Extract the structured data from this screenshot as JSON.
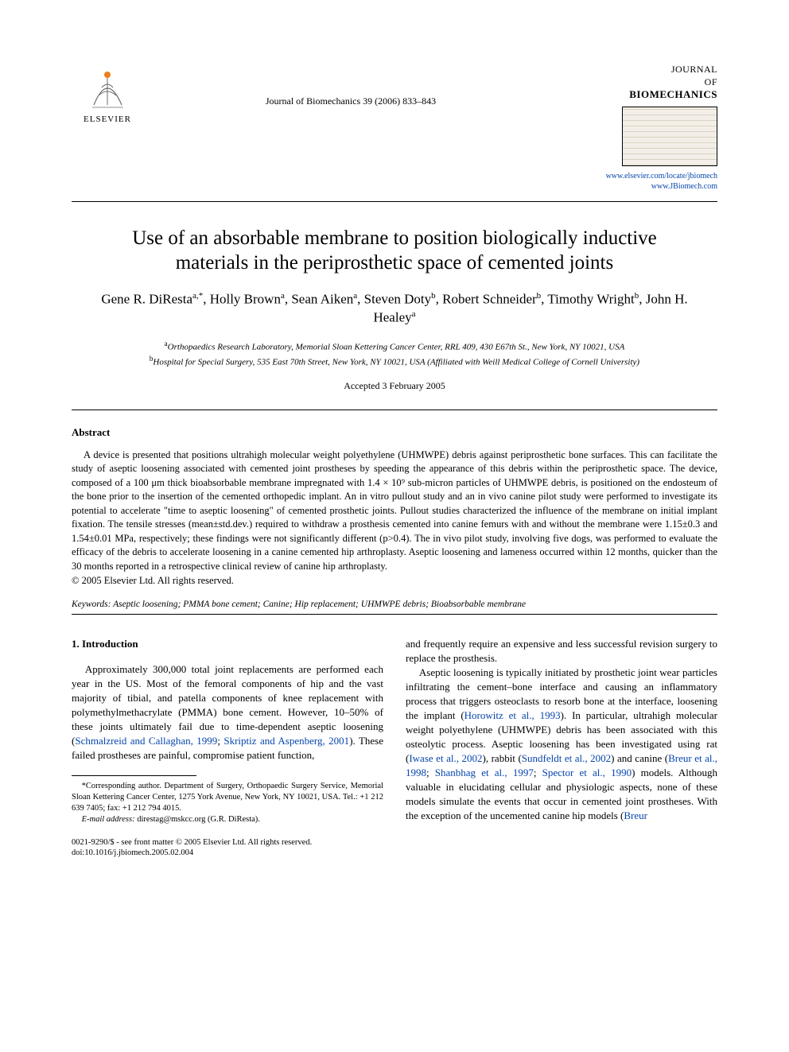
{
  "header": {
    "publisher_name": "ELSEVIER",
    "journal_ref": "Journal of Biomechanics 39 (2006) 833–843",
    "journal_name_line1": "JOURNAL",
    "journal_name_line2": "OF",
    "journal_name_line3": "BIOMECHANICS",
    "link1": "www.elsevier.com/locate/jbiomech",
    "link2": "www.JBiomech.com"
  },
  "title": "Use of an absorbable membrane to position biologically inductive materials in the periprosthetic space of cemented joints",
  "authors_html": "Gene R. DiResta<sup>a,*</sup>, Holly Brown<sup>a</sup>, Sean Aiken<sup>a</sup>, Steven Doty<sup>b</sup>, Robert Schneider<sup>b</sup>, Timothy Wright<sup>b</sup>, John H. Healey<sup>a</sup>",
  "affiliations": {
    "a": "Orthopaedics Research Laboratory, Memorial Sloan Kettering Cancer Center, RRL 409, 430 E67th St., New York, NY 10021, USA",
    "b": "Hospital for Special Surgery, 535 East 70th Street, New York, NY 10021, USA (Affiliated with Weill Medical College of Cornell University)"
  },
  "accepted": "Accepted 3 February 2005",
  "abstract": {
    "heading": "Abstract",
    "body": "A device is presented that positions ultrahigh molecular weight polyethylene (UHMWPE) debris against periprosthetic bone surfaces. This can facilitate the study of aseptic loosening associated with cemented joint prostheses by speeding the appearance of this debris within the periprosthetic space. The device, composed of a 100 μm thick bioabsorbable membrane impregnated with 1.4 × 10⁹ sub-micron particles of UHMWPE debris, is positioned on the endosteum of the bone prior to the insertion of the cemented orthopedic implant. An in vitro pullout study and an in vivo canine pilot study were performed to investigate its potential to accelerate \"time to aseptic loosening\" of cemented prosthetic joints. Pullout studies characterized the influence of the membrane on initial implant fixation. The tensile stresses (mean±std.dev.) required to withdraw a prosthesis cemented into canine femurs with and without the membrane were 1.15±0.3 and 1.54±0.01 MPa, respectively; these findings were not significantly different (p>0.4). The in vivo pilot study, involving five dogs, was performed to evaluate the efficacy of the debris to accelerate loosening in a canine cemented hip arthroplasty. Aseptic loosening and lameness occurred within 12 months, quicker than the 30 months reported in a retrospective clinical review of canine hip arthroplasty.",
    "copyright": "© 2005 Elsevier Ltd. All rights reserved."
  },
  "keywords": {
    "label": "Keywords:",
    "list": "Aseptic loosening; PMMA bone cement; Canine; Hip replacement; UHMWPE debris; Bioabsorbable membrane"
  },
  "body": {
    "section_heading": "1. Introduction",
    "col1_p1_a": "Approximately 300,000 total joint replacements are performed each year in the US. Most of the femoral components of hip and the vast majority of tibial, and patella components of knee replacement with polymethylmethacrylate (PMMA) bone cement. However, 10–50% of these joints ultimately fail due to time-dependent aseptic loosening (",
    "col1_cite1": "Schmalzreid and Callaghan, 1999",
    "col1_sep1": "; ",
    "col1_cite2": "Skriptiz and Aspenberg, 2001",
    "col1_p1_b": "). These failed prostheses are painful, compromise patient function,",
    "col2_p1": "and frequently require an expensive and less successful revision surgery to replace the prosthesis.",
    "col2_p2_a": "Aseptic loosening is typically initiated by prosthetic joint wear particles infiltrating the cement–bone interface and causing an inflammatory process that triggers osteoclasts to resorb bone at the interface, loosening the implant (",
    "col2_cite1": "Horowitz et al., 1993",
    "col2_p2_b": "). In particular, ultrahigh molecular weight polyethylene (UHMWPE) debris has been associated with this osteolytic process. Aseptic loosening has been investigated using rat (",
    "col2_cite2": "Iwase et al., 2002",
    "col2_p2_c": "), rabbit (",
    "col2_cite3": "Sundfeldt et al., 2002",
    "col2_p2_d": ") and canine (",
    "col2_cite4": "Breur et al., 1998",
    "col2_sep4": "; ",
    "col2_cite5": "Shanbhag et al., 1997",
    "col2_sep5": "; ",
    "col2_cite6": "Spector et al., 1990",
    "col2_p2_e": ") models. Although valuable in elucidating cellular and physiologic aspects, none of these models simulate the events that occur in cemented joint prostheses. With the exception of the uncemented canine hip models (",
    "col2_cite7": "Breur"
  },
  "footnote": {
    "corr": "*Corresponding author. Department of Surgery, Orthopaedic Surgery Service, Memorial Sloan Kettering Cancer Center, 1275 York Avenue, New York, NY 10021, USA. Tel.: +1 212 639 7405; fax: +1 212 794 4015.",
    "email_label": "E-mail address:",
    "email": "direstag@mskcc.org (G.R. DiResta)."
  },
  "footer": {
    "issn": "0021-9290/$ - see front matter © 2005 Elsevier Ltd. All rights reserved.",
    "doi": "doi:10.1016/j.jbiomech.2005.02.004"
  },
  "colors": {
    "text": "#000000",
    "link": "#0645ad",
    "logo_orange": "#ed7d1a",
    "logo_grey": "#6b6b6b",
    "box_bg": "#f3efe8"
  }
}
